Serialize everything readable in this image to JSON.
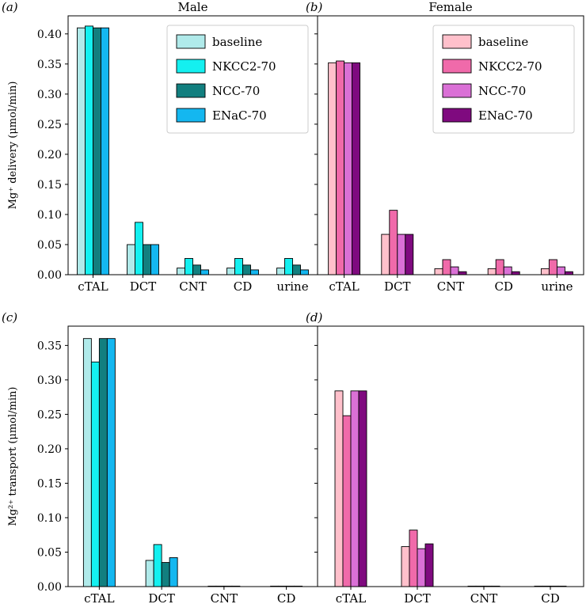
{
  "chart_data": [
    {
      "type": "bar",
      "panel_label": "(a)",
      "title": "Male",
      "ylabel": "Mg⁺ delivery (μmol/min)",
      "categories": [
        "cTAL",
        "DCT",
        "CNT",
        "CD",
        "urine"
      ],
      "ylim": [
        0,
        0.43
      ],
      "yticks": [
        0.0,
        0.05,
        0.1,
        0.15,
        0.2,
        0.25,
        0.3,
        0.35,
        0.4
      ],
      "ytick_labels": [
        "0.00",
        "0.05",
        "0.10",
        "0.15",
        "0.20",
        "0.25",
        "0.30",
        "0.35",
        "0.40"
      ],
      "legend": "top-right",
      "series": [
        {
          "name": "baseline",
          "color": "#b0eaea",
          "values": [
            0.41,
            0.05,
            0.011,
            0.011,
            0.011
          ]
        },
        {
          "name": "NKCC2-70",
          "color": "#14f0f0",
          "values": [
            0.413,
            0.087,
            0.027,
            0.027,
            0.027
          ]
        },
        {
          "name": "NCC-70",
          "color": "#127f7f",
          "values": [
            0.41,
            0.05,
            0.016,
            0.016,
            0.016
          ]
        },
        {
          "name": "ENaC-70",
          "color": "#14b7f0",
          "values": [
            0.41,
            0.05,
            0.008,
            0.008,
            0.008
          ]
        }
      ]
    },
    {
      "type": "bar",
      "panel_label": "(b)",
      "title": "Female",
      "ylabel": "",
      "categories": [
        "cTAL",
        "DCT",
        "CNT",
        "CD",
        "urine"
      ],
      "ylim": [
        0,
        0.43
      ],
      "legend": "top-right",
      "series": [
        {
          "name": "baseline",
          "color": "#ffc0cb",
          "values": [
            0.352,
            0.067,
            0.01,
            0.01,
            0.01
          ]
        },
        {
          "name": "NKCC2-70",
          "color": "#f06aaa",
          "values": [
            0.355,
            0.107,
            0.025,
            0.025,
            0.025
          ]
        },
        {
          "name": "NCC-70",
          "color": "#da70d6",
          "values": [
            0.352,
            0.067,
            0.013,
            0.013,
            0.013
          ]
        },
        {
          "name": "ENaC-70",
          "color": "#7f0a7f",
          "values": [
            0.352,
            0.067,
            0.005,
            0.005,
            0.005
          ]
        }
      ]
    },
    {
      "type": "bar",
      "panel_label": "(c)",
      "title": "",
      "ylabel": "Mg²⁺ transport (μmol/min)",
      "categories": [
        "cTAL",
        "DCT",
        "CNT",
        "CD"
      ],
      "ylim": [
        0,
        0.378
      ],
      "yticks": [
        0.0,
        0.05,
        0.1,
        0.15,
        0.2,
        0.25,
        0.3,
        0.35
      ],
      "ytick_labels": [
        "0.00",
        "0.05",
        "0.10",
        "0.15",
        "0.20",
        "0.25",
        "0.30",
        "0.35"
      ],
      "series": [
        {
          "name": "baseline",
          "color": "#b0eaea",
          "values": [
            0.36,
            0.038,
            0.0,
            0.0
          ]
        },
        {
          "name": "NKCC2-70",
          "color": "#14f0f0",
          "values": [
            0.326,
            0.061,
            0.0,
            0.0
          ]
        },
        {
          "name": "NCC-70",
          "color": "#127f7f",
          "values": [
            0.36,
            0.035,
            0.0,
            0.0
          ]
        },
        {
          "name": "ENaC-70",
          "color": "#14b7f0",
          "values": [
            0.36,
            0.042,
            0.0,
            0.0
          ]
        }
      ]
    },
    {
      "type": "bar",
      "panel_label": "(d)",
      "title": "",
      "ylabel": "",
      "categories": [
        "cTAL",
        "DCT",
        "CNT",
        "CD"
      ],
      "ylim": [
        0,
        0.378
      ],
      "series": [
        {
          "name": "baseline",
          "color": "#ffc0cb",
          "values": [
            0.284,
            0.058,
            0.0,
            0.0
          ]
        },
        {
          "name": "NKCC2-70",
          "color": "#f06aaa",
          "values": [
            0.248,
            0.082,
            0.0,
            0.0
          ]
        },
        {
          "name": "NCC-70",
          "color": "#da70d6",
          "values": [
            0.284,
            0.055,
            0.0,
            0.0
          ]
        },
        {
          "name": "ENaC-70",
          "color": "#7f0a7f",
          "values": [
            0.284,
            0.062,
            0.0,
            0.0
          ]
        }
      ]
    }
  ]
}
